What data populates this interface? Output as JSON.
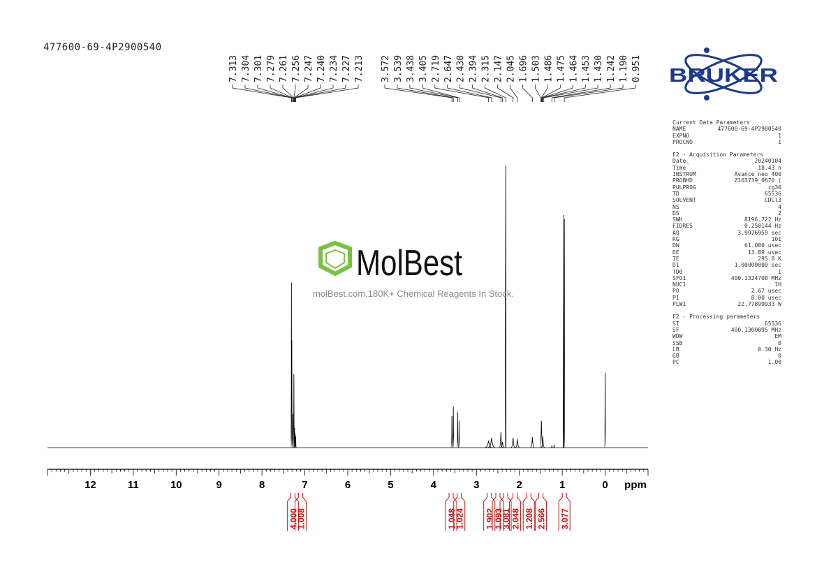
{
  "sample_title": "477600-69-4P2900540",
  "watermark": {
    "brand": "MolBest",
    "caption": "molBest.com,180K+ Chemical Reagents In Stock.",
    "color": "#7ac142"
  },
  "vendor_logo": {
    "text": "BRUKER",
    "color": "#1d3a8a"
  },
  "parameters": [
    {
      "title": "Current Data Parameters",
      "rows": [
        {
          "key": "NAME",
          "value": "477600-69-4P2900540"
        },
        {
          "key": "EXPNO",
          "value": "1"
        },
        {
          "key": "PROCNO",
          "value": "1"
        }
      ]
    },
    {
      "title": "F2 - Acquisition Parameters",
      "rows": [
        {
          "key": "Date_",
          "value": "20240104"
        },
        {
          "key": "Time",
          "value": "18.43 h"
        },
        {
          "key": "INSTRUM",
          "value": "Avance neo 400"
        },
        {
          "key": "PROBHD",
          "value": "Z163739_0670 ("
        },
        {
          "key": "PULPROG",
          "value": "zg30"
        },
        {
          "key": "TD",
          "value": "65536"
        },
        {
          "key": "SOLVENT",
          "value": "CDCl3"
        },
        {
          "key": "NS",
          "value": "4"
        },
        {
          "key": "DS",
          "value": "2"
        },
        {
          "key": "SWH",
          "value": "8196.722 Hz"
        },
        {
          "key": "FIDRES",
          "value": "0.250144 Hz"
        },
        {
          "key": "AQ",
          "value": "3.9976959 sec"
        },
        {
          "key": "RG",
          "value": "101"
        },
        {
          "key": "DW",
          "value": "61.000 usec"
        },
        {
          "key": "DE",
          "value": "13.89 usec"
        },
        {
          "key": "TE",
          "value": "295.8 K"
        },
        {
          "key": "D1",
          "value": "1.00000000 sec"
        },
        {
          "key": "TD0",
          "value": "1"
        },
        {
          "key": "SFO1",
          "value": "400.1324708 MHz"
        },
        {
          "key": "NUC1",
          "value": "1H"
        },
        {
          "key": "P0",
          "value": "2.67 usec"
        },
        {
          "key": "P1",
          "value": "8.00 usec"
        },
        {
          "key": "PLW1",
          "value": "22.77899933 W"
        }
      ]
    },
    {
      "title": "F2 - Processing parameters",
      "rows": [
        {
          "key": "SI",
          "value": "65536"
        },
        {
          "key": "SF",
          "value": "400.1300095 MHz"
        },
        {
          "key": "WDW",
          "value": "EM"
        },
        {
          "key": "SSB",
          "value": "0"
        },
        {
          "key": "LB",
          "value": "0.30 Hz"
        },
        {
          "key": "GB",
          "value": "0"
        },
        {
          "key": "PC",
          "value": "1.00"
        }
      ]
    }
  ],
  "chart_data": {
    "type": "line",
    "xlabel": "ppm",
    "xlim": [
      13.0,
      -1.0
    ],
    "x_ticks": [
      "12",
      "11",
      "10",
      "9",
      "8",
      "7",
      "6",
      "5",
      "4",
      "3",
      "2",
      "1",
      "0"
    ],
    "x_tick_values": [
      12,
      11,
      10,
      9,
      8,
      7,
      6,
      5,
      4,
      3,
      2,
      1,
      0
    ],
    "y_max_rel": 1.0,
    "peak_color": "#000000",
    "integral_color": "#cc1111",
    "peak_labels_group1": [
      "7.313",
      "7.304",
      "7.301",
      "7.279",
      "7.261",
      "7.256",
      "7.247",
      "7.240",
      "7.234",
      "7.227",
      "7.213"
    ],
    "peak_labels_group2": [
      "3.572",
      "3.539",
      "3.438",
      "3.405",
      "2.719",
      "2.647",
      "2.430",
      "2.394",
      "2.315",
      "2.147",
      "2.045",
      "1.696",
      "1.503",
      "1.486",
      "1.475",
      "1.464",
      "1.453",
      "1.430",
      "1.242",
      "1.190",
      "0.951"
    ],
    "peaks": [
      {
        "ppm": 7.313,
        "height": 0.585,
        "width": 0.005
      },
      {
        "ppm": 7.304,
        "height": 0.38,
        "width": 0.005
      },
      {
        "ppm": 7.279,
        "height": 0.12,
        "width": 0.006
      },
      {
        "ppm": 7.256,
        "height": 0.26,
        "width": 0.005
      },
      {
        "ppm": 7.24,
        "height": 0.07,
        "width": 0.006
      },
      {
        "ppm": 7.227,
        "height": 0.05,
        "width": 0.006
      },
      {
        "ppm": 7.213,
        "height": 0.04,
        "width": 0.006
      },
      {
        "ppm": 3.572,
        "height": 0.112,
        "width": 0.004
      },
      {
        "ppm": 3.539,
        "height": 0.145,
        "width": 0.004
      },
      {
        "ppm": 3.438,
        "height": 0.125,
        "width": 0.004
      },
      {
        "ppm": 3.405,
        "height": 0.095,
        "width": 0.004
      },
      {
        "ppm": 2.719,
        "height": 0.025,
        "width": 0.05
      },
      {
        "ppm": 2.647,
        "height": 0.035,
        "width": 0.05
      },
      {
        "ppm": 2.43,
        "height": 0.055,
        "width": 0.025
      },
      {
        "ppm": 2.394,
        "height": 0.02,
        "width": 0.03
      },
      {
        "ppm": 2.315,
        "height": 1.0,
        "width": 0.003
      },
      {
        "ppm": 2.147,
        "height": 0.035,
        "width": 0.03
      },
      {
        "ppm": 2.045,
        "height": 0.03,
        "width": 0.03
      },
      {
        "ppm": 1.696,
        "height": 0.037,
        "width": 0.03
      },
      {
        "ppm": 1.486,
        "height": 0.095,
        "width": 0.025
      },
      {
        "ppm": 1.453,
        "height": 0.04,
        "width": 0.025
      },
      {
        "ppm": 1.242,
        "height": 0.008,
        "width": 0.01
      },
      {
        "ppm": 1.19,
        "height": 0.01,
        "width": 0.01
      },
      {
        "ppm": 0.963,
        "height": 0.825,
        "width": 0.003
      },
      {
        "ppm": 0.951,
        "height": 0.81,
        "width": 0.003
      },
      {
        "ppm": 0.0,
        "height": 0.265,
        "width": 0.003
      }
    ],
    "integrals": [
      {
        "label": "4.000",
        "center": 7.28
      },
      {
        "label": "1.008",
        "center": 7.1
      },
      {
        "label": "1.048",
        "center": 3.59
      },
      {
        "label": "1.024",
        "center": 3.4
      },
      {
        "label": "1.902",
        "center": 2.7
      },
      {
        "label": "1.093",
        "center": 2.5
      },
      {
        "label": "3.081",
        "center": 2.32
      },
      {
        "label": "2.048",
        "center": 2.1
      },
      {
        "label": "1.208",
        "center": 1.78
      },
      {
        "label": "2.566",
        "center": 1.5
      },
      {
        "label": "3.077",
        "center": 0.95
      }
    ]
  }
}
